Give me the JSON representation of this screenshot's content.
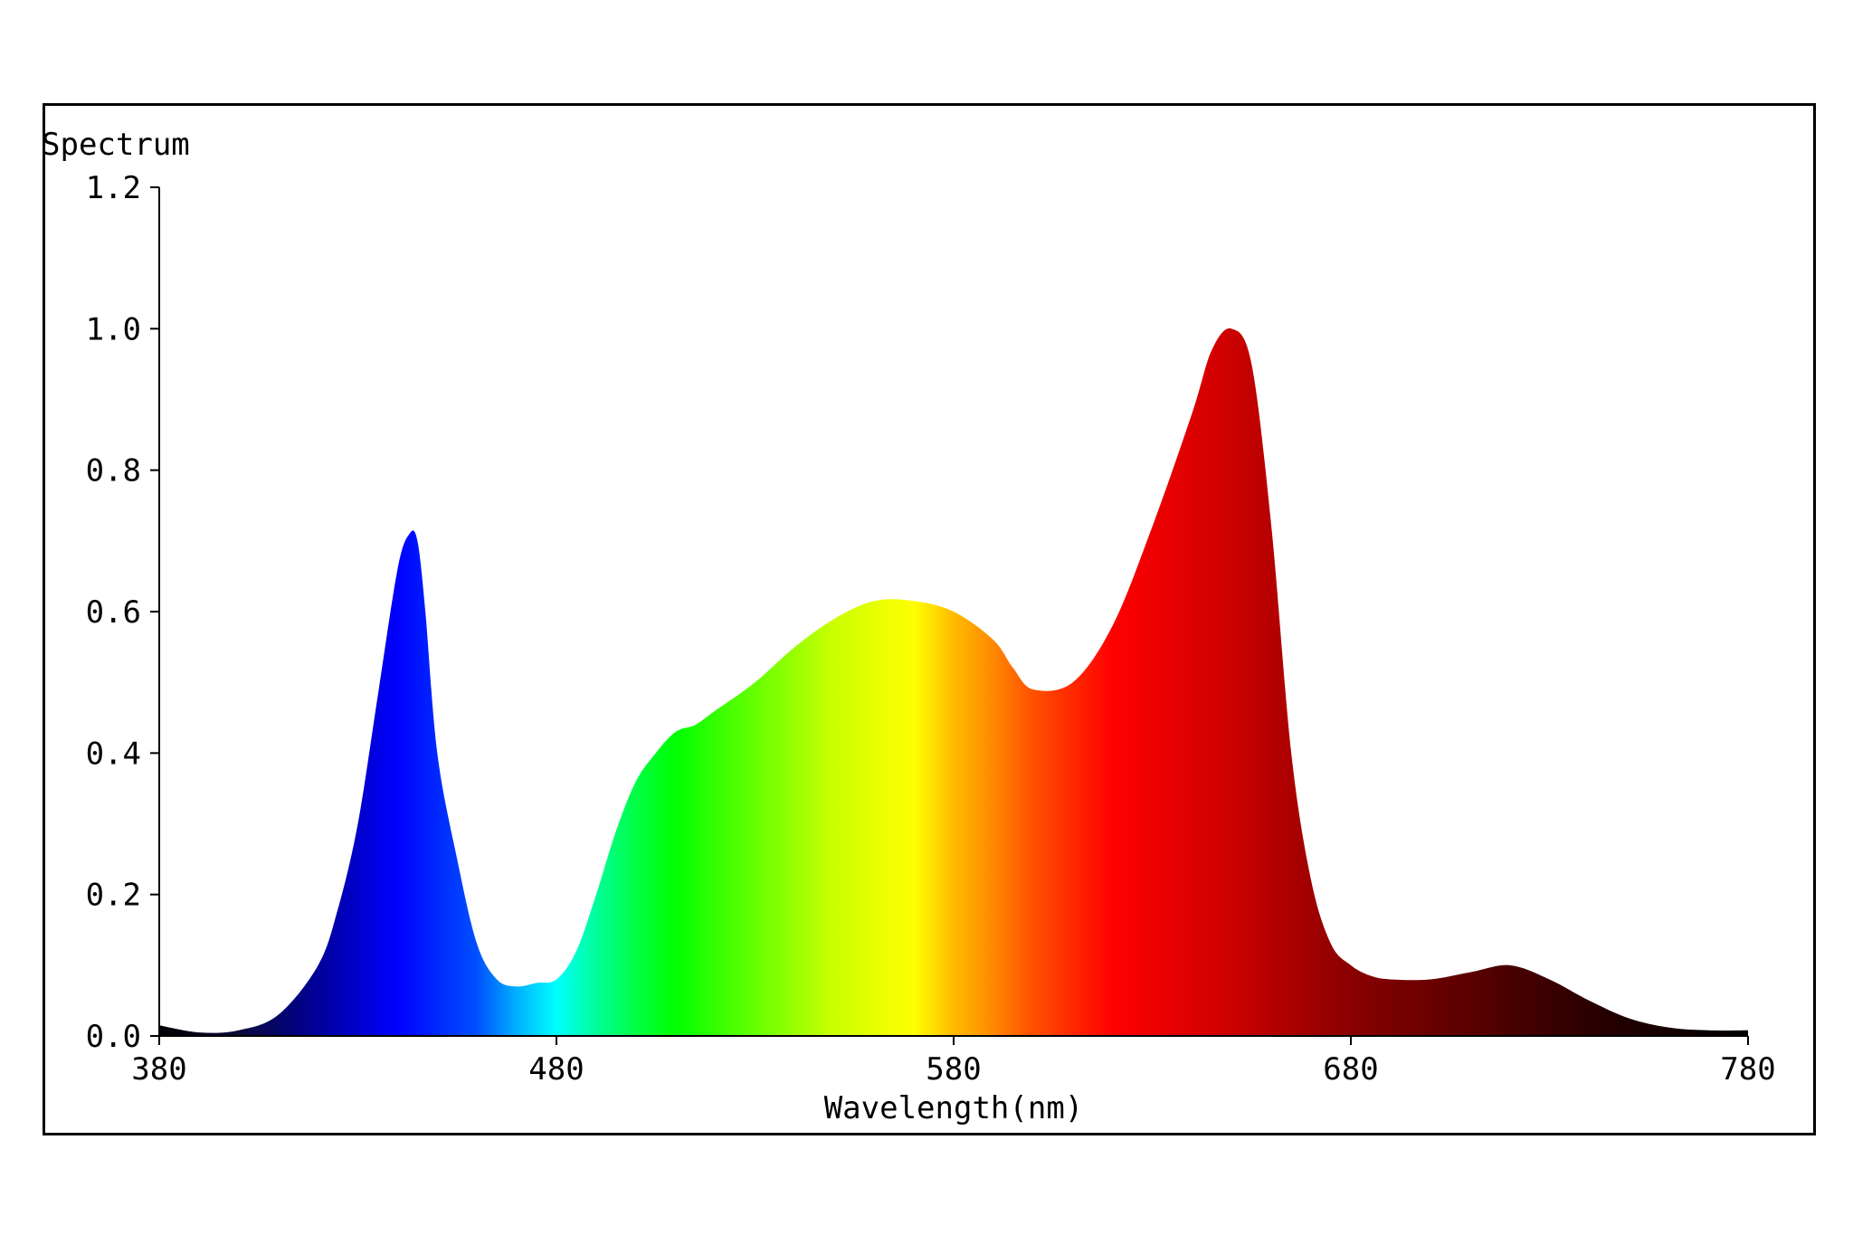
{
  "chart_data": {
    "type": "area",
    "title": "Spectrum",
    "xlabel": "Wavelength(nm)",
    "ylabel": "",
    "xlim": [
      380,
      780
    ],
    "ylim": [
      0,
      1.2
    ],
    "x_ticks": [
      380,
      480,
      580,
      680,
      780
    ],
    "x_tick_labels": [
      "380",
      "480",
      "580",
      "680",
      "780"
    ],
    "y_ticks": [
      0.0,
      0.2,
      0.4,
      0.6,
      0.8,
      1.0,
      1.2
    ],
    "y_tick_labels": [
      "0.0",
      "0.2",
      "0.4",
      "0.6",
      "0.8",
      "1.0",
      "1.2"
    ],
    "grid": false,
    "fill": "visible-spectrum-gradient",
    "x": [
      380,
      390,
      400,
      410,
      420,
      425,
      430,
      435,
      440,
      443,
      445,
      447,
      450,
      455,
      460,
      465,
      470,
      475,
      480,
      485,
      490,
      495,
      500,
      505,
      510,
      515,
      520,
      530,
      540,
      550,
      560,
      570,
      580,
      590,
      595,
      600,
      610,
      620,
      630,
      640,
      645,
      650,
      655,
      660,
      665,
      670,
      675,
      680,
      685,
      690,
      700,
      710,
      720,
      730,
      740,
      750,
      760,
      770,
      780
    ],
    "y": [
      0.015,
      0.005,
      0.008,
      0.03,
      0.1,
      0.18,
      0.3,
      0.48,
      0.66,
      0.71,
      0.7,
      0.6,
      0.4,
      0.25,
      0.13,
      0.08,
      0.07,
      0.075,
      0.08,
      0.12,
      0.2,
      0.29,
      0.36,
      0.4,
      0.43,
      0.44,
      0.46,
      0.5,
      0.55,
      0.59,
      0.615,
      0.615,
      0.6,
      0.56,
      0.52,
      0.49,
      0.5,
      0.58,
      0.72,
      0.88,
      0.97,
      1.0,
      0.95,
      0.72,
      0.4,
      0.22,
      0.13,
      0.1,
      0.085,
      0.08,
      0.08,
      0.09,
      0.1,
      0.08,
      0.05,
      0.025,
      0.012,
      0.008,
      0.008
    ],
    "colors": {
      "axis": "#000000",
      "background": "#ffffff",
      "spectrum_stops": [
        {
          "nm": 380,
          "color": "#000000"
        },
        {
          "nm": 400,
          "color": "#0a0a3a"
        },
        {
          "nm": 420,
          "color": "#00009a"
        },
        {
          "nm": 440,
          "color": "#0000ff"
        },
        {
          "nm": 460,
          "color": "#0050ff"
        },
        {
          "nm": 470,
          "color": "#00b0ff"
        },
        {
          "nm": 480,
          "color": "#00ffff"
        },
        {
          "nm": 490,
          "color": "#00ff99"
        },
        {
          "nm": 500,
          "color": "#00ff44"
        },
        {
          "nm": 510,
          "color": "#00ff00"
        },
        {
          "nm": 530,
          "color": "#66ff00"
        },
        {
          "nm": 550,
          "color": "#ccff00"
        },
        {
          "nm": 570,
          "color": "#ffff00"
        },
        {
          "nm": 580,
          "color": "#ffbb00"
        },
        {
          "nm": 590,
          "color": "#ff8800"
        },
        {
          "nm": 600,
          "color": "#ff5000"
        },
        {
          "nm": 620,
          "color": "#ff0000"
        },
        {
          "nm": 650,
          "color": "#cc0000"
        },
        {
          "nm": 680,
          "color": "#8a0000"
        },
        {
          "nm": 710,
          "color": "#5a0000"
        },
        {
          "nm": 740,
          "color": "#2a0000"
        },
        {
          "nm": 780,
          "color": "#000000"
        }
      ]
    }
  }
}
